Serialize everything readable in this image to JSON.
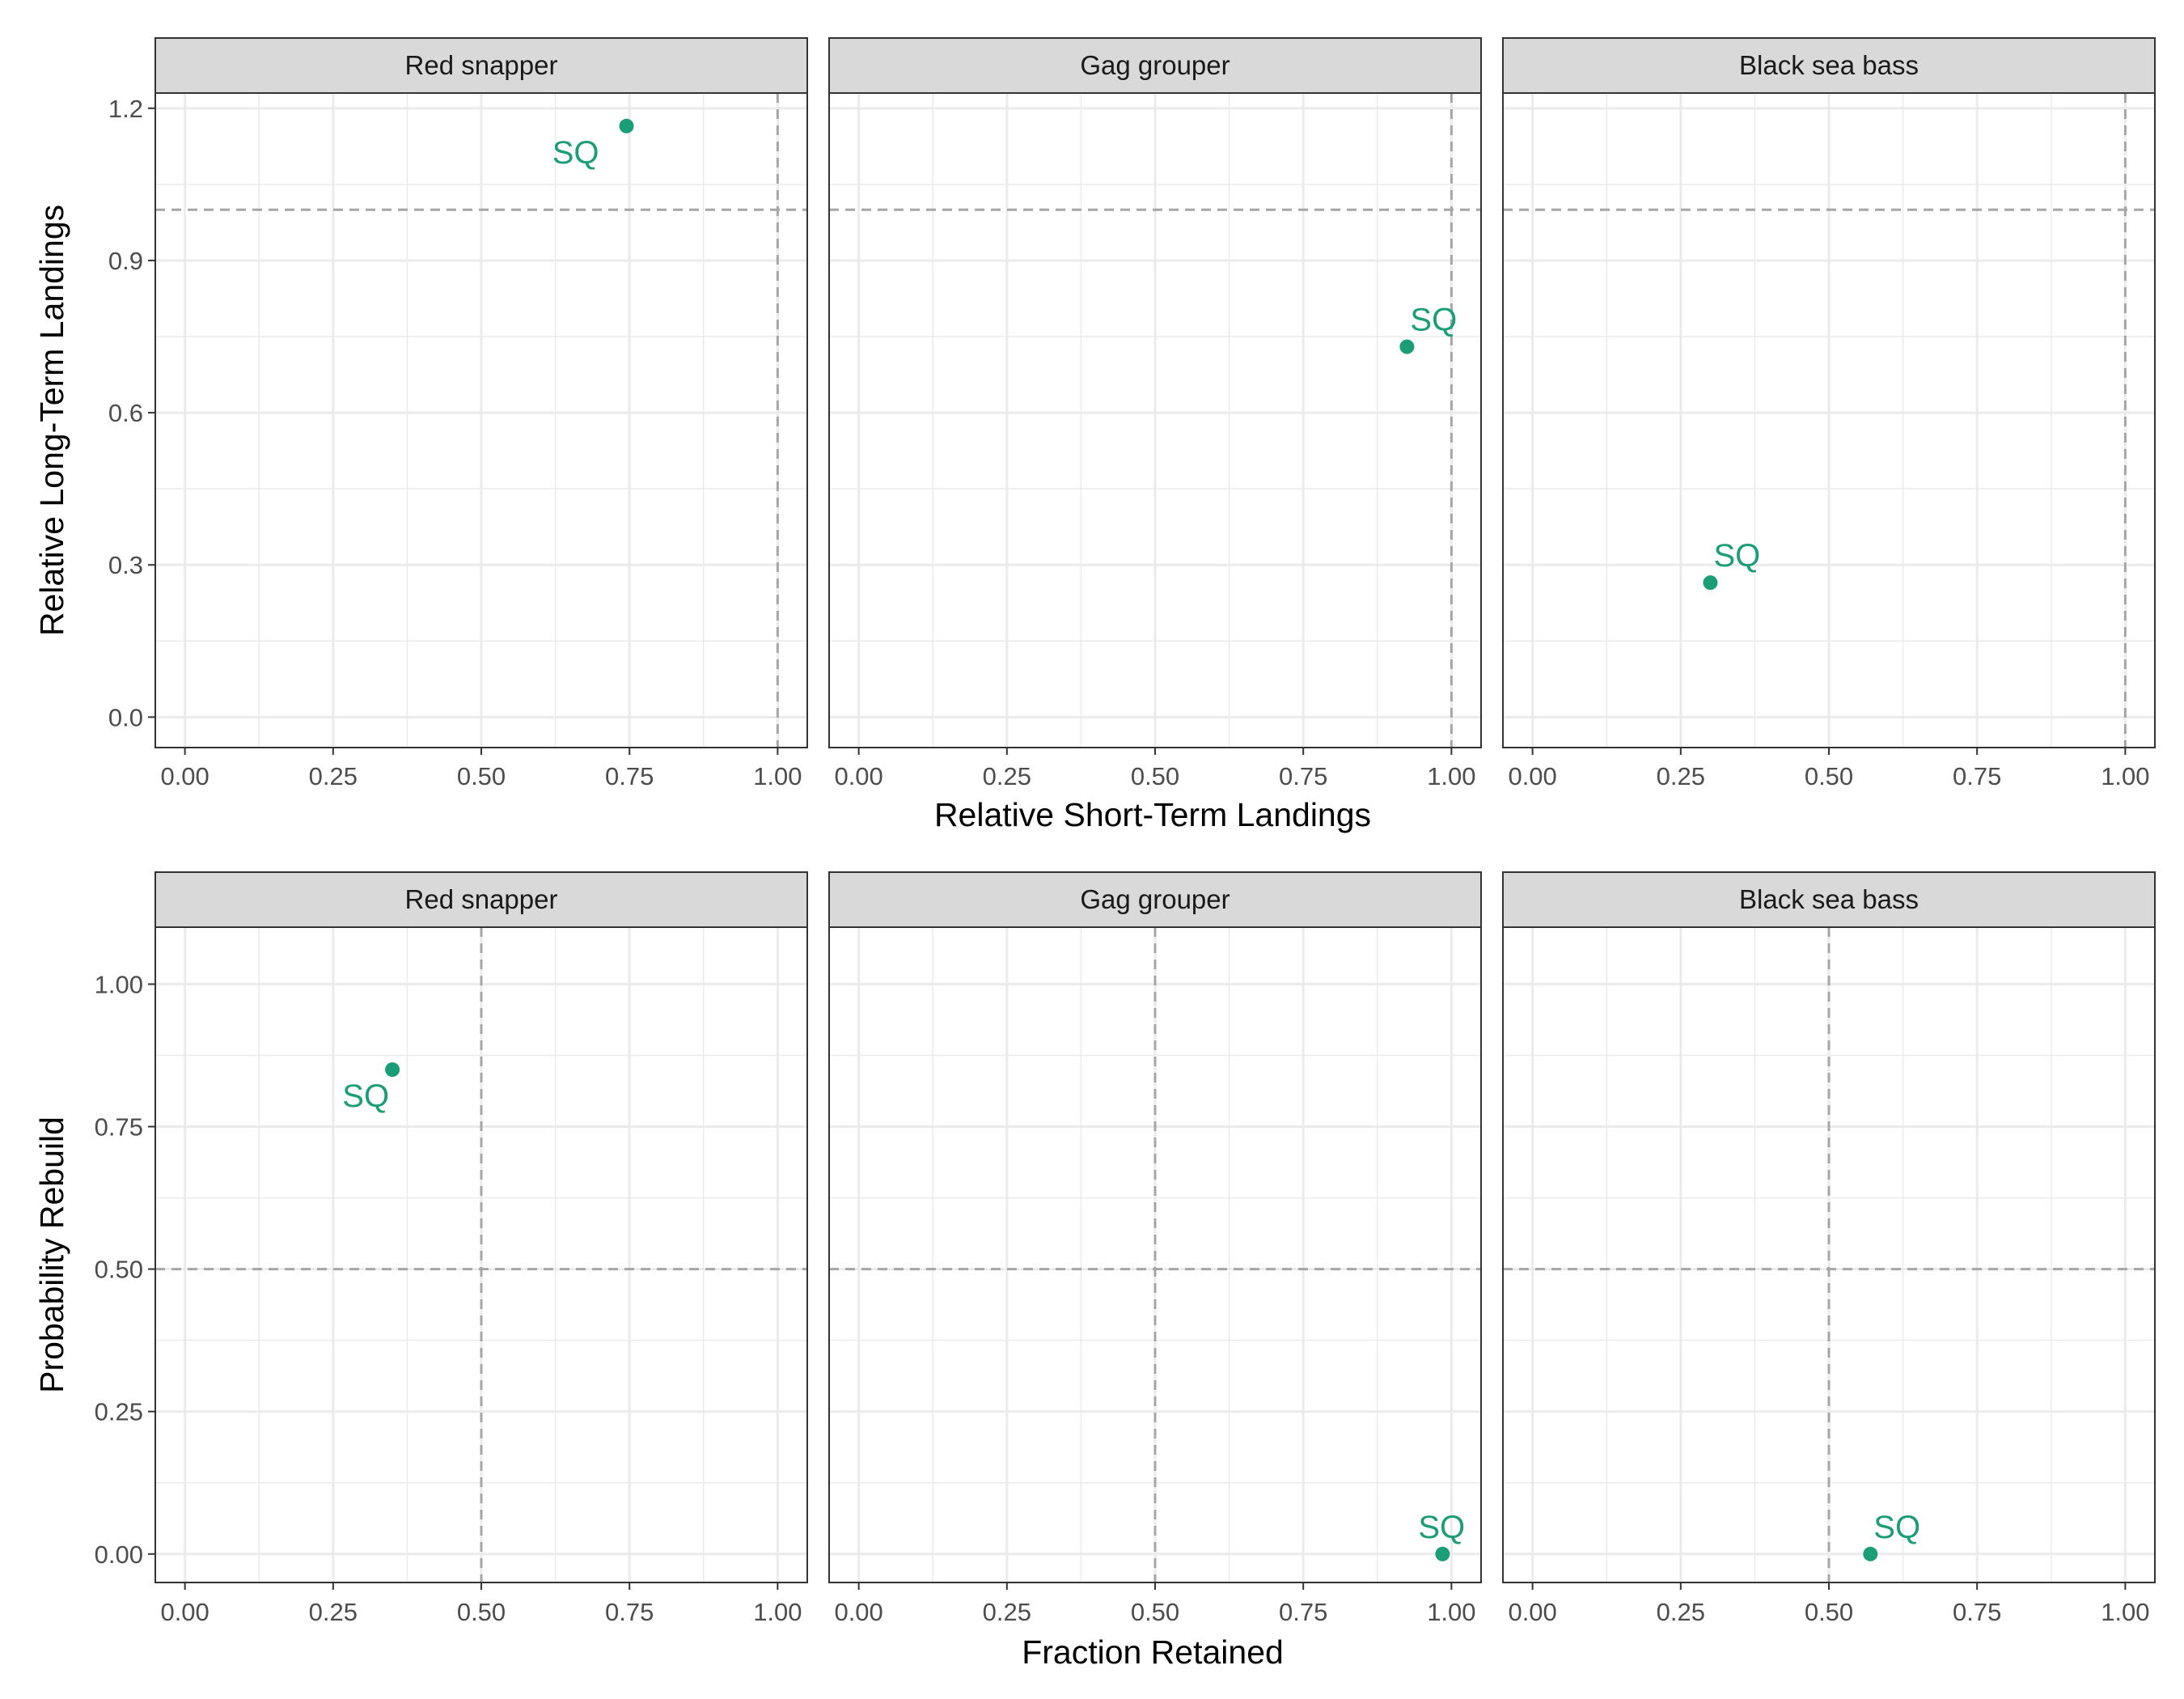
{
  "colors": {
    "point": "#1b9e77",
    "strip_fill": "#d9d9d9",
    "grid": "#ebebeb",
    "reference_line": "#a6a6a6"
  },
  "chart_data": [
    {
      "type": "scatter",
      "xlabel": "Relative Short-Term Landings",
      "ylabel": "Relative Long-Term Landings",
      "xlim": [
        -0.05,
        1.05
      ],
      "ylim": [
        -0.06,
        1.23
      ],
      "x_ticks": [
        0,
        0.25,
        0.5,
        0.75,
        1
      ],
      "x_tick_labels": [
        "0.00",
        "0.25",
        "0.50",
        "0.75",
        "1.00"
      ],
      "y_ticks": [
        0,
        0.3,
        0.6,
        0.9,
        1.2
      ],
      "y_tick_labels": [
        "0.0",
        "0.3",
        "0.6",
        "0.9",
        "1.2"
      ],
      "grid": true,
      "reference_lines": {
        "x": 1.0,
        "y": 1.0
      },
      "facets": [
        {
          "title": "Red snapper",
          "points": [
            {
              "label": "SQ",
              "x": 0.745,
              "y": 1.165
            }
          ]
        },
        {
          "title": "Gag grouper",
          "points": [
            {
              "label": "SQ",
              "x": 0.925,
              "y": 0.73
            }
          ]
        },
        {
          "title": "Black sea bass",
          "points": [
            {
              "label": "SQ",
              "x": 0.3,
              "y": 0.265
            }
          ]
        }
      ]
    },
    {
      "type": "scatter",
      "xlabel": "Fraction Retained",
      "ylabel": "Probability Rebuild",
      "xlim": [
        -0.05,
        1.05
      ],
      "ylim": [
        -0.05,
        1.1
      ],
      "x_ticks": [
        0,
        0.25,
        0.5,
        0.75,
        1
      ],
      "x_tick_labels": [
        "0.00",
        "0.25",
        "0.50",
        "0.75",
        "1.00"
      ],
      "y_ticks": [
        0,
        0.25,
        0.5,
        0.75,
        1
      ],
      "y_tick_labels": [
        "0.00",
        "0.25",
        "0.50",
        "0.75",
        "1.00"
      ],
      "grid": true,
      "reference_lines": {
        "x": 0.5,
        "y": 0.5
      },
      "facets": [
        {
          "title": "Red snapper",
          "points": [
            {
              "label": "SQ",
              "x": 0.35,
              "y": 0.85
            }
          ]
        },
        {
          "title": "Gag grouper",
          "points": [
            {
              "label": "SQ",
              "x": 0.985,
              "y": 0.0
            }
          ]
        },
        {
          "title": "Black sea bass",
          "points": [
            {
              "label": "SQ",
              "x": 0.57,
              "y": 0.0
            }
          ]
        }
      ]
    }
  ]
}
